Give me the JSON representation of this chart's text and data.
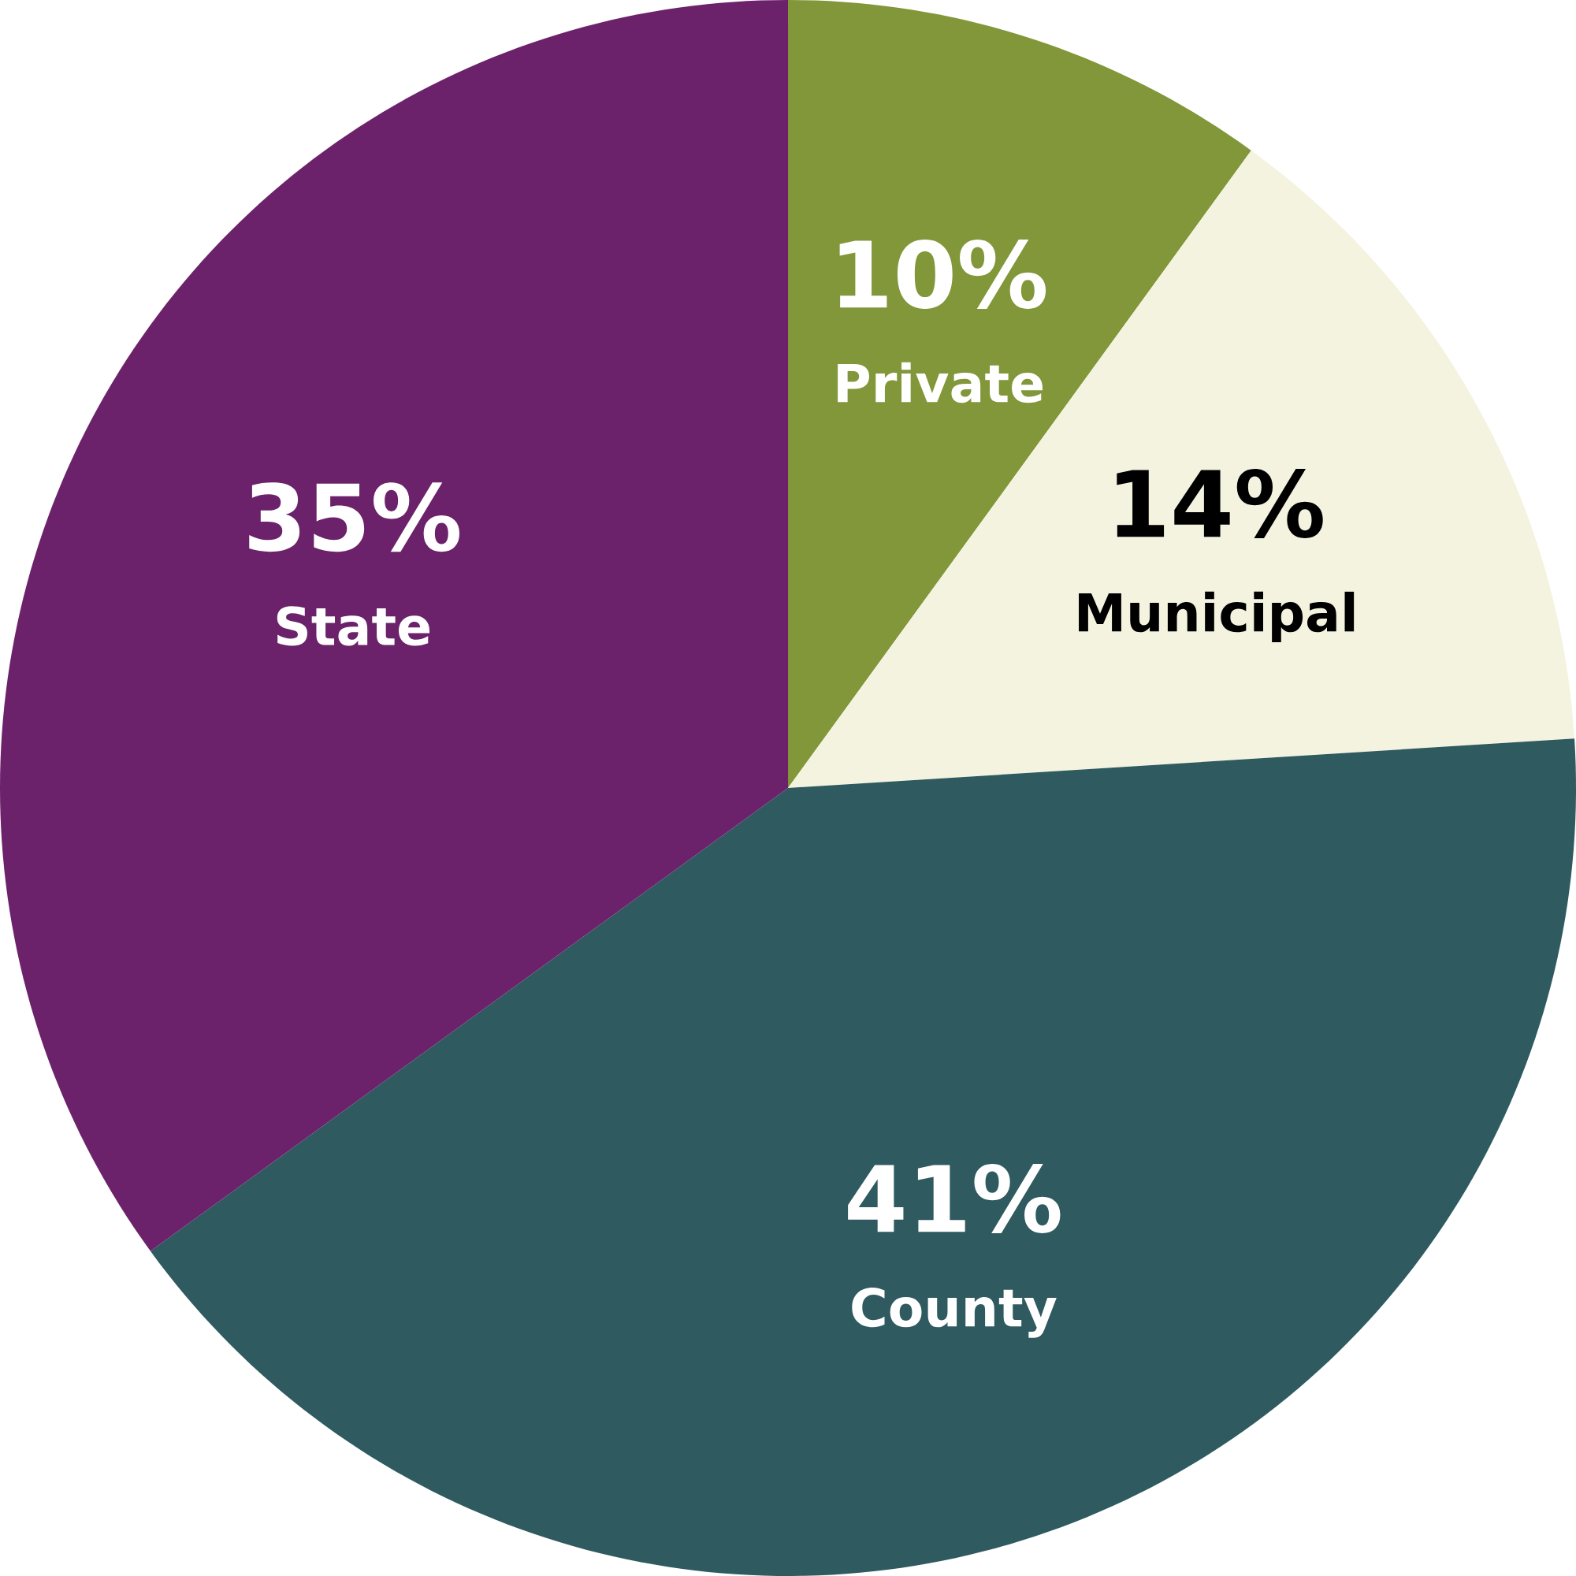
{
  "chart_data": {
    "type": "pie",
    "categories": [
      "Private",
      "Municipal",
      "County",
      "State"
    ],
    "values": [
      10,
      14,
      41,
      35
    ],
    "colors": [
      "#82963a",
      "#f4f3e0",
      "#2e5a60",
      "#6b226b"
    ],
    "data_labels": true,
    "value_labels": [
      "10%",
      "14%",
      "41%",
      "35%"
    ]
  }
}
